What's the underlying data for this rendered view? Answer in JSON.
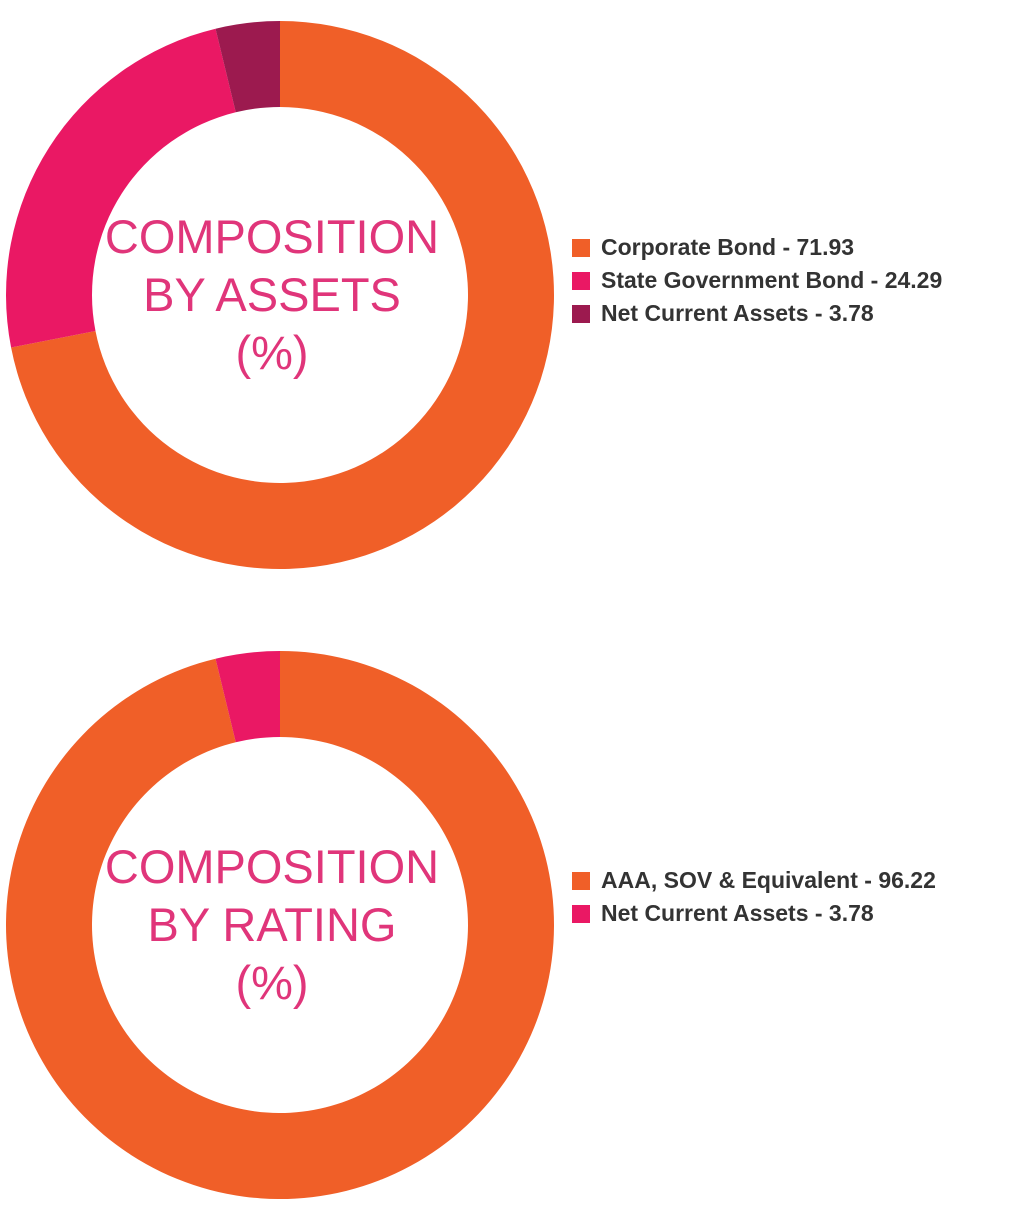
{
  "chart_data": [
    {
      "type": "pie",
      "subtype": "donut",
      "title_lines": [
        "COMPOSITION",
        "BY ASSETS",
        "(%)"
      ],
      "slices": [
        {
          "label": "Corporate Bond - 71.93",
          "name": "Corporate Bond",
          "value": 71.93,
          "color": "#f05f28"
        },
        {
          "label": "State Government Bond - 24.29",
          "name": "State Government Bond",
          "value": 24.29,
          "color": "#ea1864"
        },
        {
          "label": "Net Current Assets - 3.78",
          "name": "Net Current Assets",
          "value": 3.78,
          "color": "#9c1a4f"
        }
      ],
      "legend_position": "right"
    },
    {
      "type": "pie",
      "subtype": "donut",
      "title_lines": [
        "COMPOSITION",
        "BY RATING",
        "(%)"
      ],
      "slices": [
        {
          "label": "AAA, SOV & Equivalent - 96.22",
          "name": "AAA, SOV & Equivalent",
          "value": 96.22,
          "color": "#f05f28"
        },
        {
          "label": "Net Current Assets - 3.78",
          "name": "Net Current Assets",
          "value": 3.78,
          "color": "#ea1864"
        }
      ],
      "legend_position": "right"
    }
  ]
}
